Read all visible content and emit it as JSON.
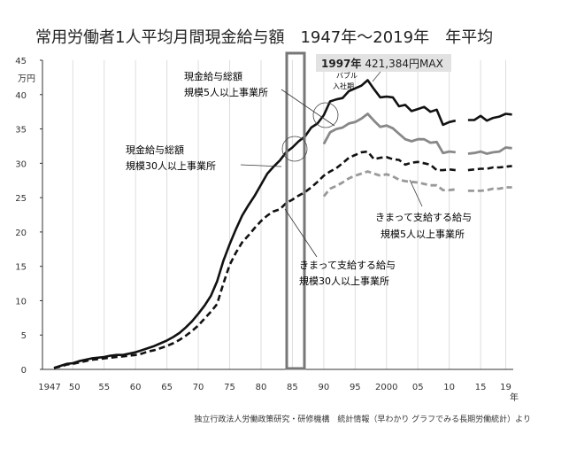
{
  "chart_data": {
    "type": "line",
    "title": "常用労働者1人平均月間現金給与額　1947年～2019年　年平均",
    "ylabel": "万円",
    "xlabel": "年",
    "ylim": [
      0,
      45
    ],
    "xlim": [
      1947,
      2019
    ],
    "yticks": [
      "0",
      "5",
      "10",
      "15",
      "20",
      "25",
      "30",
      "35",
      "40",
      "45"
    ],
    "xtick_labels": [
      {
        "year": 1947,
        "label": "1947"
      },
      {
        "year": 1950,
        "label": "50"
      },
      {
        "year": 1955,
        "label": "55"
      },
      {
        "year": 1960,
        "label": "60"
      },
      {
        "year": 1965,
        "label": "65"
      },
      {
        "year": 1970,
        "label": "70"
      },
      {
        "year": 1975,
        "label": "75"
      },
      {
        "year": 1980,
        "label": "80"
      },
      {
        "year": 1985,
        "label": "85"
      },
      {
        "year": 1990,
        "label": "90"
      },
      {
        "year": 1995,
        "label": "95"
      },
      {
        "year": 2000,
        "label": "2000"
      },
      {
        "year": 2005,
        "label": "05"
      },
      {
        "year": 2010,
        "label": "10"
      },
      {
        "year": 2015,
        "label": "15"
      },
      {
        "year": 2019,
        "label": "19"
      }
    ],
    "grid": "vertical",
    "series": [
      {
        "name": "現金給与総額 規模30人以上事業所",
        "color": "#111111",
        "style": "solid",
        "start": 1947,
        "values": [
          0.2,
          0.5,
          0.8,
          0.9,
          1.2,
          1.4,
          1.6,
          1.7,
          1.8,
          2.0,
          2.1,
          2.1,
          2.3,
          2.5,
          2.8,
          3.1,
          3.4,
          3.8,
          4.2,
          4.7,
          5.3,
          6.1,
          7.0,
          8.1,
          9.3,
          10.7,
          12.8,
          15.8,
          18.2,
          20.4,
          22.4,
          23.9,
          25.3,
          26.9,
          28.5,
          29.5,
          30.4,
          31.6,
          32.3,
          33.2,
          33.9,
          35.2,
          35.8,
          37.0,
          39.0,
          39.3,
          39.5,
          40.5,
          40.9,
          41.3,
          42.1,
          40.8,
          39.6,
          39.7,
          39.6,
          38.3,
          38.5,
          37.6,
          37.9,
          38.2,
          37.5,
          37.8,
          35.6,
          36.0,
          36.2,
          null,
          36.3,
          36.3,
          36.9,
          36.2,
          36.6,
          36.8,
          37.2,
          37.1
        ]
      },
      {
        "name": "現金給与総額 規模5人以上事業所",
        "color": "#888888",
        "style": "solid",
        "start": 1990,
        "values": [
          32.8,
          34.5,
          35.0,
          35.2,
          35.8,
          36.0,
          36.5,
          37.2,
          36.2,
          35.3,
          35.5,
          35.1,
          34.3,
          33.5,
          33.2,
          33.5,
          33.5,
          33.0,
          33.1,
          31.5,
          31.7,
          31.6,
          null,
          31.4,
          31.5,
          31.7,
          31.4,
          31.6,
          31.7,
          32.3,
          32.2
        ]
      },
      {
        "name": "きまって支給する給与 規模30人以上事業所",
        "color": "#111111",
        "style": "dashed",
        "start": 1947,
        "values": [
          0.2,
          0.4,
          0.7,
          0.8,
          1.0,
          1.2,
          1.4,
          1.5,
          1.6,
          1.7,
          1.8,
          1.9,
          2.0,
          2.1,
          2.3,
          2.6,
          2.8,
          3.1,
          3.4,
          3.8,
          4.3,
          4.9,
          5.6,
          6.4,
          7.4,
          8.4,
          9.5,
          12.5,
          15.2,
          17.0,
          18.5,
          19.5,
          20.6,
          21.6,
          22.4,
          23.0,
          23.3,
          24.2,
          24.7,
          25.3,
          25.8,
          26.5,
          27.3,
          28.2,
          28.8,
          29.3,
          30.0,
          30.8,
          31.2,
          31.6,
          31.7,
          30.6,
          30.8,
          30.9,
          30.6,
          30.5,
          29.8,
          30.1,
          30.2,
          30.0,
          29.8,
          29.0,
          29.0,
          29.1,
          29.0,
          null,
          29.0,
          29.1,
          29.2,
          29.2,
          29.4,
          29.4,
          29.5,
          29.6
        ]
      },
      {
        "name": "きまって支給する給与 規模5人以上事業所",
        "color": "#999999",
        "style": "dashed",
        "start": 1990,
        "values": [
          25.2,
          26.3,
          26.7,
          27.2,
          27.8,
          28.2,
          28.5,
          28.8,
          28.5,
          28.2,
          28.4,
          28.1,
          27.6,
          27.4,
          27.3,
          27.2,
          27.0,
          26.8,
          26.8,
          26.1,
          26.1,
          26.2,
          null,
          26.0,
          26.0,
          26.0,
          26.1,
          26.3,
          26.3,
          26.5,
          26.5
        ]
      }
    ],
    "annotations": {
      "max": {
        "year_label": "1997年",
        "value_label": "421,384円MAX"
      },
      "bubble": [
        "バブル",
        "入社期"
      ],
      "highlight_years": [
        1985,
        1987
      ],
      "labels": [
        [
          "現金給与総額",
          "規模5人以上事業所"
        ],
        [
          "現金給与総額",
          "規模30人以上事業所"
        ],
        [
          "きまって支給する給与",
          "規模5人以上事業所"
        ],
        [
          "きまって支給する給与",
          "規模30人以上事業所"
        ]
      ]
    }
  },
  "source": "独立行政法人労働政策研究・研修機構　統計情報（早わかり グラフでみる長期労働統計）より"
}
